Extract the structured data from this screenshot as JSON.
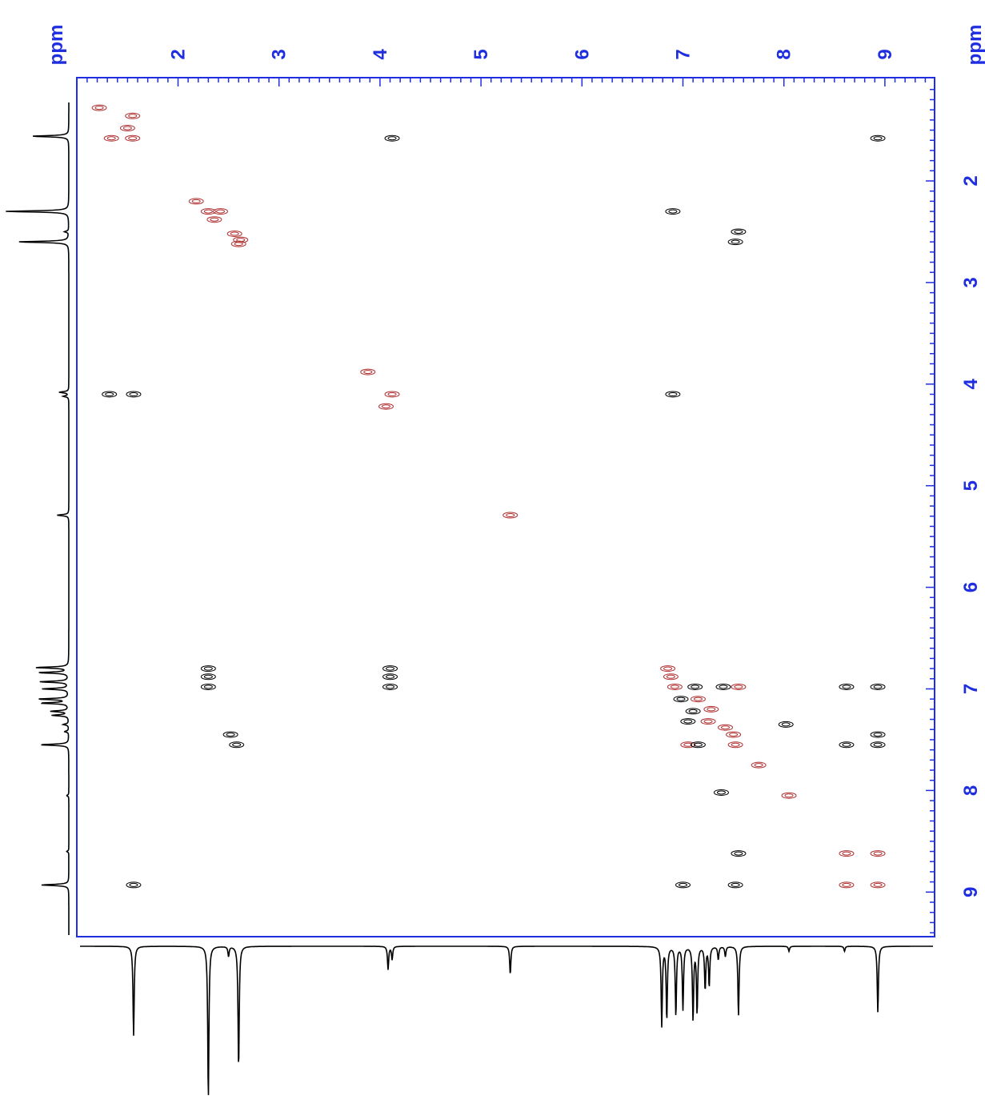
{
  "chart_data": {
    "type": "contour-2d",
    "title": "",
    "x_axis": {
      "label": "ppm",
      "ticks": [
        "2",
        "3",
        "4",
        "5",
        "6",
        "7",
        "8",
        "9"
      ],
      "range": [
        1.0,
        9.5
      ],
      "direction": "increasing"
    },
    "y_axis": {
      "label": "ppm",
      "ticks": [
        "2",
        "3",
        "4",
        "5",
        "6",
        "7",
        "8",
        "9"
      ],
      "range": [
        1.1,
        9.5
      ],
      "direction": "increasing-downward"
    },
    "grid": false,
    "colors": {
      "frame": "#1f2ee0",
      "positive_contours": "#000000",
      "negative_contours": "#b03030",
      "trace": "#000000"
    },
    "projection_peaks": [
      {
        "ppm": 1.56,
        "height": 0.54
      },
      {
        "ppm": 2.3,
        "height": 0.92
      },
      {
        "ppm": 2.5,
        "height": 0.06
      },
      {
        "ppm": 2.6,
        "height": 0.74
      },
      {
        "ppm": 4.08,
        "height": 0.14
      },
      {
        "ppm": 4.12,
        "height": 0.08
      },
      {
        "ppm": 5.29,
        "height": 0.17
      },
      {
        "ppm": 6.79,
        "height": 0.48
      },
      {
        "ppm": 6.84,
        "height": 0.44
      },
      {
        "ppm": 6.93,
        "height": 0.42
      },
      {
        "ppm": 7.0,
        "height": 0.38
      },
      {
        "ppm": 7.1,
        "height": 0.44
      },
      {
        "ppm": 7.14,
        "height": 0.4
      },
      {
        "ppm": 7.22,
        "height": 0.26
      },
      {
        "ppm": 7.26,
        "height": 0.24
      },
      {
        "ppm": 7.35,
        "height": 0.08
      },
      {
        "ppm": 7.42,
        "height": 0.06
      },
      {
        "ppm": 7.55,
        "height": 0.42
      },
      {
        "ppm": 8.05,
        "height": 0.03
      },
      {
        "ppm": 8.6,
        "height": 0.03
      },
      {
        "ppm": 8.93,
        "height": 0.4
      }
    ],
    "contours": [
      {
        "x": 1.22,
        "y": 1.28,
        "color": "negative"
      },
      {
        "x": 1.55,
        "y": 1.36,
        "color": "negative"
      },
      {
        "x": 1.5,
        "y": 1.48,
        "color": "negative"
      },
      {
        "x": 1.34,
        "y": 1.58,
        "color": "negative"
      },
      {
        "x": 1.55,
        "y": 1.58,
        "color": "negative"
      },
      {
        "x": 4.12,
        "y": 1.58,
        "color": "positive"
      },
      {
        "x": 8.93,
        "y": 1.58,
        "color": "positive"
      },
      {
        "x": 2.18,
        "y": 2.2,
        "color": "negative"
      },
      {
        "x": 2.3,
        "y": 2.3,
        "color": "negative"
      },
      {
        "x": 2.42,
        "y": 2.3,
        "color": "negative"
      },
      {
        "x": 2.36,
        "y": 2.38,
        "color": "negative"
      },
      {
        "x": 2.56,
        "y": 2.52,
        "color": "negative"
      },
      {
        "x": 2.62,
        "y": 2.58,
        "color": "negative"
      },
      {
        "x": 2.6,
        "y": 2.62,
        "color": "negative"
      },
      {
        "x": 6.9,
        "y": 2.3,
        "color": "positive"
      },
      {
        "x": 7.55,
        "y": 2.5,
        "color": "positive"
      },
      {
        "x": 7.52,
        "y": 2.6,
        "color": "positive"
      },
      {
        "x": 1.56,
        "y": 4.1,
        "color": "positive"
      },
      {
        "x": 1.32,
        "y": 4.1,
        "color": "positive"
      },
      {
        "x": 3.88,
        "y": 3.88,
        "color": "negative"
      },
      {
        "x": 4.12,
        "y": 4.1,
        "color": "negative"
      },
      {
        "x": 4.06,
        "y": 4.22,
        "color": "negative"
      },
      {
        "x": 6.9,
        "y": 4.1,
        "color": "positive"
      },
      {
        "x": 5.29,
        "y": 5.29,
        "color": "negative"
      },
      {
        "x": 2.3,
        "y": 6.8,
        "color": "positive"
      },
      {
        "x": 2.3,
        "y": 6.88,
        "color": "positive"
      },
      {
        "x": 2.3,
        "y": 6.98,
        "color": "positive"
      },
      {
        "x": 4.1,
        "y": 6.8,
        "color": "positive"
      },
      {
        "x": 4.1,
        "y": 6.88,
        "color": "positive"
      },
      {
        "x": 4.1,
        "y": 6.98,
        "color": "positive"
      },
      {
        "x": 2.52,
        "y": 7.45,
        "color": "positive"
      },
      {
        "x": 2.58,
        "y": 7.55,
        "color": "positive"
      },
      {
        "x": 6.85,
        "y": 6.8,
        "color": "negative"
      },
      {
        "x": 6.88,
        "y": 6.88,
        "color": "negative"
      },
      {
        "x": 6.92,
        "y": 6.98,
        "color": "negative"
      },
      {
        "x": 7.12,
        "y": 6.98,
        "color": "positive"
      },
      {
        "x": 7.4,
        "y": 6.98,
        "color": "positive"
      },
      {
        "x": 7.55,
        "y": 6.98,
        "color": "negative"
      },
      {
        "x": 6.98,
        "y": 7.1,
        "color": "positive"
      },
      {
        "x": 7.15,
        "y": 7.1,
        "color": "negative"
      },
      {
        "x": 7.28,
        "y": 7.2,
        "color": "negative"
      },
      {
        "x": 7.1,
        "y": 7.22,
        "color": "positive"
      },
      {
        "x": 7.05,
        "y": 7.32,
        "color": "positive"
      },
      {
        "x": 7.25,
        "y": 7.32,
        "color": "negative"
      },
      {
        "x": 7.42,
        "y": 7.38,
        "color": "negative"
      },
      {
        "x": 7.5,
        "y": 7.45,
        "color": "negative"
      },
      {
        "x": 7.05,
        "y": 7.55,
        "color": "negative"
      },
      {
        "x": 7.15,
        "y": 7.55,
        "color": "positive"
      },
      {
        "x": 7.52,
        "y": 7.55,
        "color": "negative"
      },
      {
        "x": 7.75,
        "y": 7.75,
        "color": "negative"
      },
      {
        "x": 8.02,
        "y": 7.35,
        "color": "positive"
      },
      {
        "x": 8.62,
        "y": 6.98,
        "color": "positive"
      },
      {
        "x": 8.93,
        "y": 6.98,
        "color": "positive"
      },
      {
        "x": 8.62,
        "y": 7.55,
        "color": "positive"
      },
      {
        "x": 8.93,
        "y": 7.45,
        "color": "positive"
      },
      {
        "x": 8.93,
        "y": 7.55,
        "color": "positive"
      },
      {
        "x": 7.38,
        "y": 8.02,
        "color": "positive"
      },
      {
        "x": 8.05,
        "y": 8.05,
        "color": "negative"
      },
      {
        "x": 7.55,
        "y": 8.62,
        "color": "positive"
      },
      {
        "x": 8.62,
        "y": 8.62,
        "color": "negative"
      },
      {
        "x": 8.93,
        "y": 8.62,
        "color": "negative"
      },
      {
        "x": 1.56,
        "y": 8.93,
        "color": "positive"
      },
      {
        "x": 7.0,
        "y": 8.93,
        "color": "positive"
      },
      {
        "x": 7.52,
        "y": 8.93,
        "color": "positive"
      },
      {
        "x": 8.62,
        "y": 8.93,
        "color": "negative"
      },
      {
        "x": 8.93,
        "y": 8.93,
        "color": "negative"
      }
    ]
  }
}
